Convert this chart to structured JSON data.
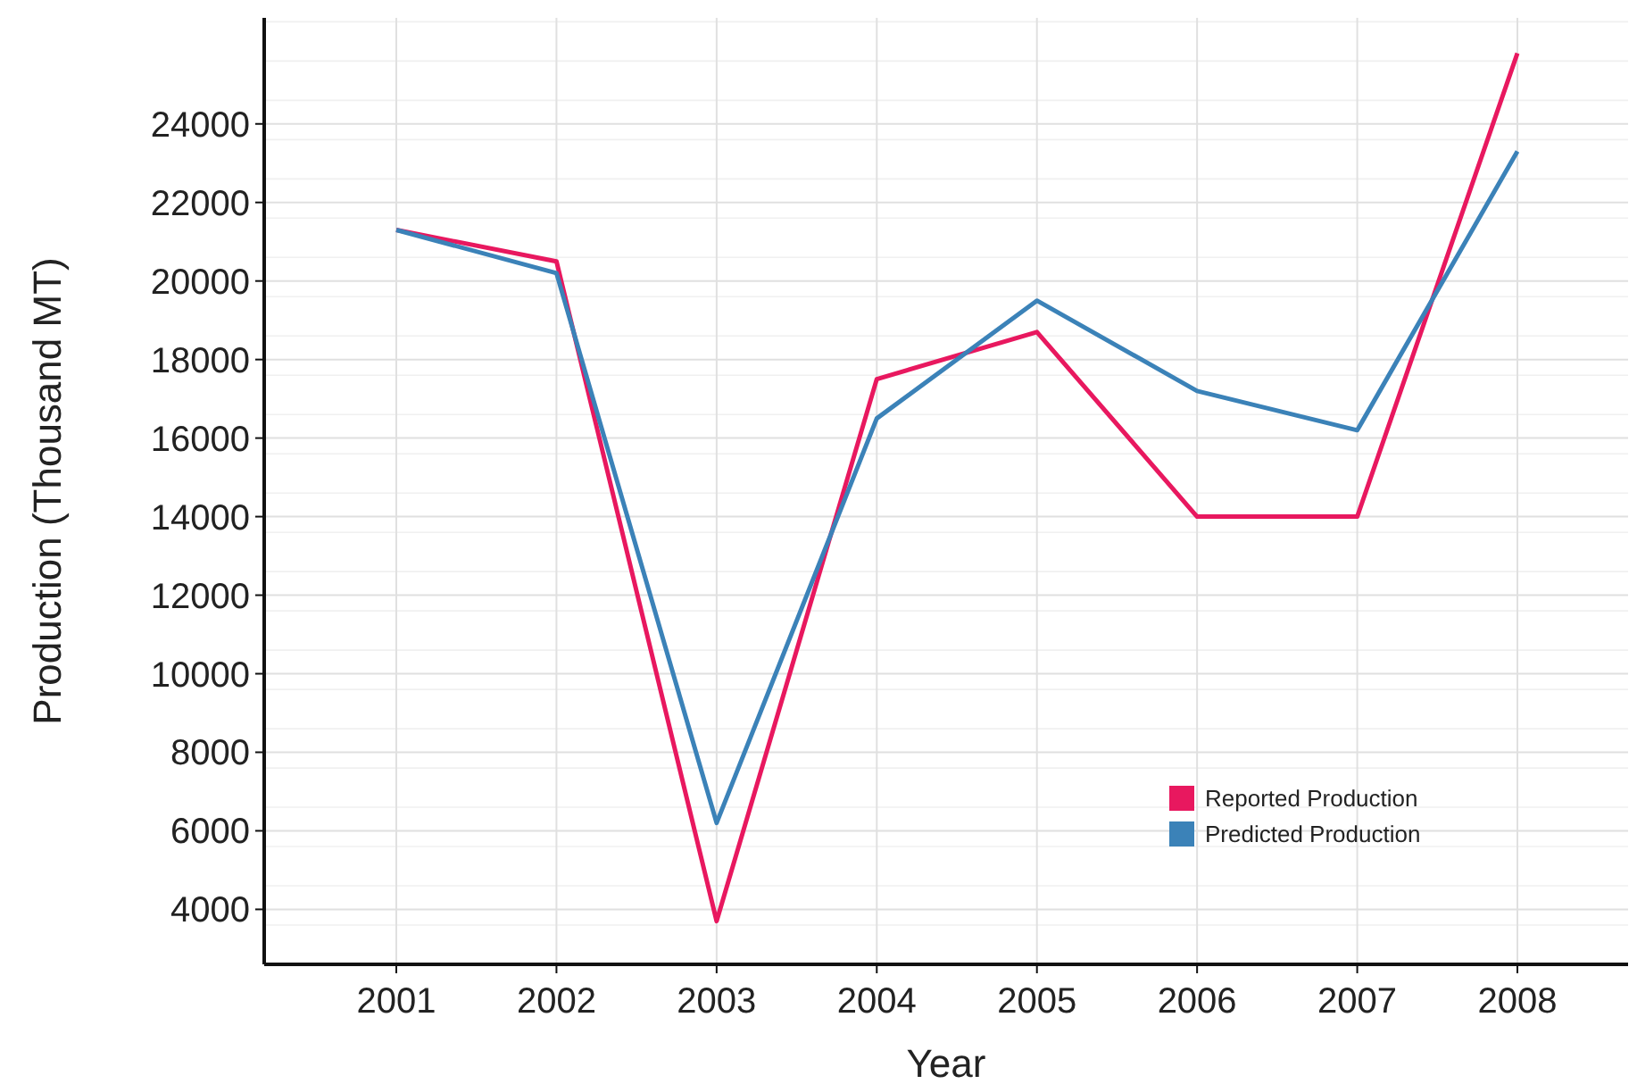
{
  "chart_data": {
    "type": "line",
    "xlabel": "Year",
    "ylabel": "Production (Thousand MT)",
    "categories": [
      "2001",
      "2002",
      "2003",
      "2004",
      "2005",
      "2006",
      "2007",
      "2008"
    ],
    "series": [
      {
        "name": "Reported Production",
        "color": "#e8185f",
        "values": [
          21300,
          20500,
          3700,
          17500,
          18700,
          14000,
          14000,
          25800
        ]
      },
      {
        "name": "Predicted Production",
        "color": "#3b82b8",
        "values": [
          21300,
          20200,
          6200,
          16500,
          19500,
          17200,
          16200,
          23300
        ]
      }
    ],
    "ylim": [
      2600,
      26700
    ],
    "yticks": [
      4000,
      6000,
      8000,
      10000,
      12000,
      14000,
      16000,
      18000,
      20000,
      22000,
      24000
    ],
    "grid": true,
    "legend": "bottom right",
    "marker": "none",
    "line_style": "solid"
  }
}
